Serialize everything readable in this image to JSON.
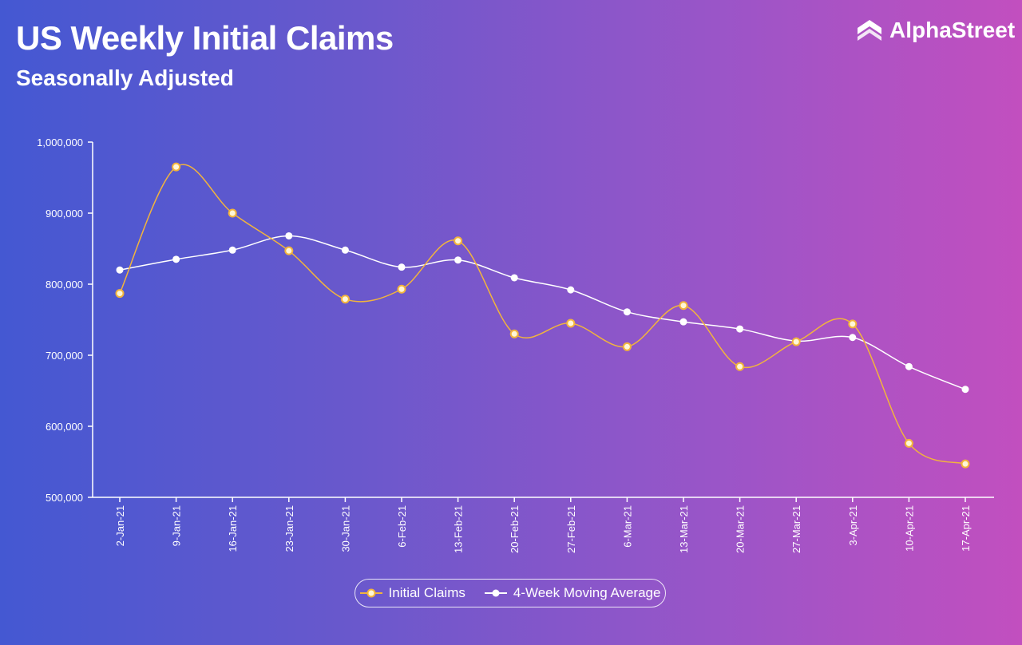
{
  "header": {
    "title": "US Weekly Initial Claims",
    "subtitle": "Seasonally Adjusted",
    "logo_text": "AlphaStreet"
  },
  "colors": {
    "initial_claims": "#f2b43c",
    "moving_average": "#ffffff"
  },
  "chart_data": {
    "type": "line",
    "title": "US Weekly Initial Claims",
    "subtitle": "Seasonally Adjusted",
    "xlabel": "",
    "ylabel": "",
    "ylim": [
      500000,
      1000000
    ],
    "yticks": [
      500000,
      600000,
      700000,
      800000,
      900000,
      1000000
    ],
    "ytick_labels": [
      "500,000",
      "600,000",
      "700,000",
      "800,000",
      "900,000",
      "1,000,000"
    ],
    "categories": [
      "2-Jan-21",
      "9-Jan-21",
      "16-Jan-21",
      "23-Jan-21",
      "30-Jan-21",
      "6-Feb-21",
      "13-Feb-21",
      "20-Feb-21",
      "27-Feb-21",
      "6-Mar-21",
      "13-Mar-21",
      "20-Mar-21",
      "27-Mar-21",
      "3-Apr-21",
      "10-Apr-21",
      "17-Apr-21"
    ],
    "grid": false,
    "legend_position": "bottom-center",
    "series": [
      {
        "name": "Initial Claims",
        "values": [
          787000,
          965000,
          900000,
          847000,
          779000,
          793000,
          861000,
          730000,
          745000,
          712000,
          770000,
          684000,
          719000,
          744000,
          576000,
          547000
        ]
      },
      {
        "name": "4-Week Moving Average",
        "values": [
          820000,
          835000,
          848000,
          868000,
          848000,
          824000,
          834000,
          809000,
          792000,
          761000,
          747000,
          737000,
          720000,
          725000,
          684000,
          652000
        ]
      }
    ]
  }
}
